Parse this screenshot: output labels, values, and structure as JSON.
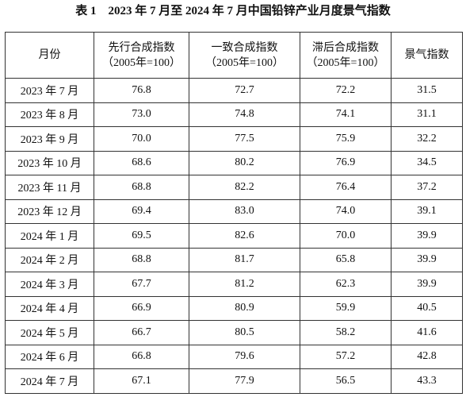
{
  "title": "表 1　2023 年 7 月至 2024 年 7 月中国铅锌产业月度景气指数",
  "table": {
    "header": [
      [
        "月份"
      ],
      [
        "先行合成指数",
        "（2005年=100）"
      ],
      [
        "一致合成指数",
        "（2005年=100）"
      ],
      [
        "滞后合成指数",
        "（2005年=100）"
      ],
      [
        "景气指数"
      ]
    ],
    "rows": [
      [
        "2023 年 7 月",
        "76.8",
        "72.7",
        "72.2",
        "31.5"
      ],
      [
        "2023 年 8 月",
        "73.0",
        "74.8",
        "74.1",
        "31.1"
      ],
      [
        "2023 年 9 月",
        "70.0",
        "77.5",
        "75.9",
        "32.2"
      ],
      [
        "2023 年 10 月",
        "68.6",
        "80.2",
        "76.9",
        "34.5"
      ],
      [
        "2023 年 11 月",
        "68.8",
        "82.2",
        "76.4",
        "37.2"
      ],
      [
        "2023 年 12 月",
        "69.4",
        "83.0",
        "74.0",
        "39.1"
      ],
      [
        "2024 年 1 月",
        "69.5",
        "82.6",
        "70.0",
        "39.9"
      ],
      [
        "2024 年 2 月",
        "68.8",
        "81.7",
        "65.8",
        "39.9"
      ],
      [
        "2024 年 3 月",
        "67.7",
        "81.2",
        "62.3",
        "39.9"
      ],
      [
        "2024 年 4 月",
        "66.9",
        "80.9",
        "59.9",
        "40.5"
      ],
      [
        "2024 年 5 月",
        "66.7",
        "80.5",
        "58.2",
        "41.6"
      ],
      [
        "2024 年 6 月",
        "66.8",
        "79.6",
        "57.2",
        "42.8"
      ],
      [
        "2024 年 7 月",
        "67.1",
        "77.9",
        "56.5",
        "43.3"
      ]
    ]
  }
}
